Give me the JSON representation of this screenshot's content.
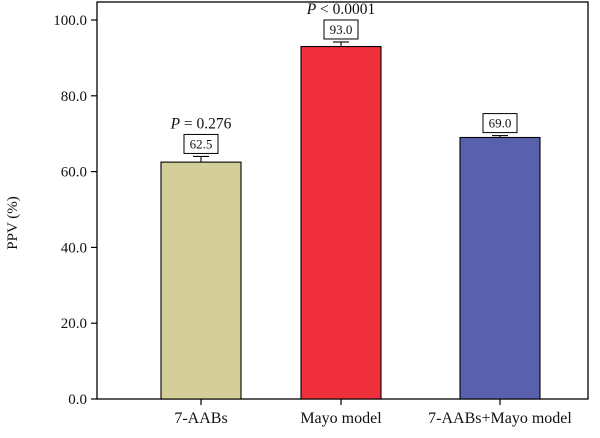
{
  "chart_data": {
    "type": "bar",
    "title": "",
    "xlabel": "",
    "ylabel": "PPV (%)",
    "ylim": [
      0,
      100
    ],
    "yticks": [
      "0.0",
      "20.0",
      "40.0",
      "60.0",
      "80.0",
      "100.0"
    ],
    "categories": [
      "7-AABs",
      "Mayo model",
      "7-AABs+Mayo model"
    ],
    "values": [
      62.5,
      93.0,
      69.0
    ],
    "value_labels": [
      "62.5",
      "93.0",
      "69.0"
    ],
    "error": [
      1.5,
      1.2,
      0.5
    ],
    "colors": [
      "#d4cf98",
      "#ef2f3c",
      "#5a61ac"
    ],
    "annotations": [
      {
        "category": "7-AABs",
        "p_symbol": "P",
        "p_text": " = 0.276"
      },
      {
        "category": "Mayo model",
        "p_symbol": "P",
        "p_text": " < 0.0001"
      }
    ],
    "grid": false,
    "legend": "none"
  }
}
